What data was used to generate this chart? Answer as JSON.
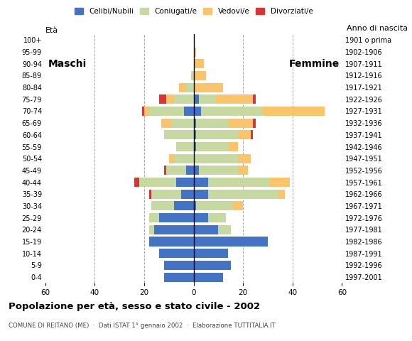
{
  "age_groups": [
    "0-4",
    "5-9",
    "10-14",
    "15-19",
    "20-24",
    "25-29",
    "30-34",
    "35-39",
    "40-44",
    "45-49",
    "50-54",
    "55-59",
    "60-64",
    "65-69",
    "70-74",
    "75-79",
    "80-84",
    "85-89",
    "90-94",
    "95-99",
    "100+"
  ],
  "birth_years": [
    "1997-2001",
    "1992-1996",
    "1987-1991",
    "1982-1986",
    "1977-1981",
    "1972-1976",
    "1967-1971",
    "1962-1966",
    "1957-1961",
    "1952-1956",
    "1947-1951",
    "1942-1946",
    "1937-1941",
    "1932-1936",
    "1927-1931",
    "1922-1926",
    "1917-1921",
    "1912-1916",
    "1907-1911",
    "1902-1906",
    "1901 o prima"
  ],
  "males": {
    "celibinubili": [
      12,
      12,
      14,
      18,
      16,
      14,
      8,
      5,
      7,
      3,
      0,
      0,
      0,
      0,
      4,
      0,
      0,
      0,
      0,
      0,
      0
    ],
    "coniugati": [
      0,
      0,
      0,
      0,
      2,
      4,
      9,
      12,
      15,
      8,
      8,
      7,
      12,
      9,
      14,
      8,
      3,
      1,
      0,
      0,
      0
    ],
    "vedovi": [
      0,
      0,
      0,
      0,
      0,
      0,
      0,
      0,
      0,
      0,
      2,
      0,
      0,
      4,
      2,
      3,
      3,
      0,
      0,
      0,
      0
    ],
    "divorziati": [
      0,
      0,
      0,
      0,
      0,
      0,
      0,
      1,
      2,
      1,
      0,
      0,
      0,
      0,
      1,
      3,
      0,
      0,
      0,
      0,
      0
    ]
  },
  "females": {
    "celibinubili": [
      12,
      15,
      14,
      30,
      10,
      6,
      1,
      6,
      6,
      2,
      0,
      1,
      1,
      1,
      3,
      2,
      0,
      0,
      0,
      0,
      0
    ],
    "coniugate": [
      0,
      0,
      0,
      0,
      5,
      7,
      15,
      28,
      25,
      16,
      18,
      13,
      17,
      13,
      25,
      7,
      0,
      0,
      0,
      0,
      0
    ],
    "vedove": [
      0,
      0,
      0,
      0,
      0,
      0,
      4,
      3,
      8,
      4,
      5,
      4,
      5,
      10,
      25,
      15,
      12,
      5,
      4,
      1,
      0
    ],
    "divorziate": [
      0,
      0,
      0,
      0,
      0,
      0,
      0,
      0,
      0,
      0,
      0,
      0,
      1,
      1,
      0,
      1,
      0,
      0,
      0,
      0,
      0
    ]
  },
  "colors": {
    "celibinubili": "#4472C4",
    "coniugati": "#C5D9A0",
    "vedovi": "#FAC46A",
    "divorziati": "#D93535"
  },
  "xlim": 60,
  "title": "Popolazione per età, sesso e stato civile - 2002",
  "subtitle": "COMUNE DI REITANO (ME)  ·  Dati ISTAT 1° gennaio 2002  ·  Elaborazione TUTTITALIA.IT",
  "ylabel_left": "Età",
  "ylabel_right": "Anno di nascita",
  "xlabel_left": "Maschi",
  "xlabel_right": "Femmine",
  "legend_labels": [
    "Celibi/Nubili",
    "Coniugati/e",
    "Vedovi/e",
    "Divorziati/e"
  ],
  "bg_color": "#FFFFFF",
  "grid_color": "#AAAAAA"
}
